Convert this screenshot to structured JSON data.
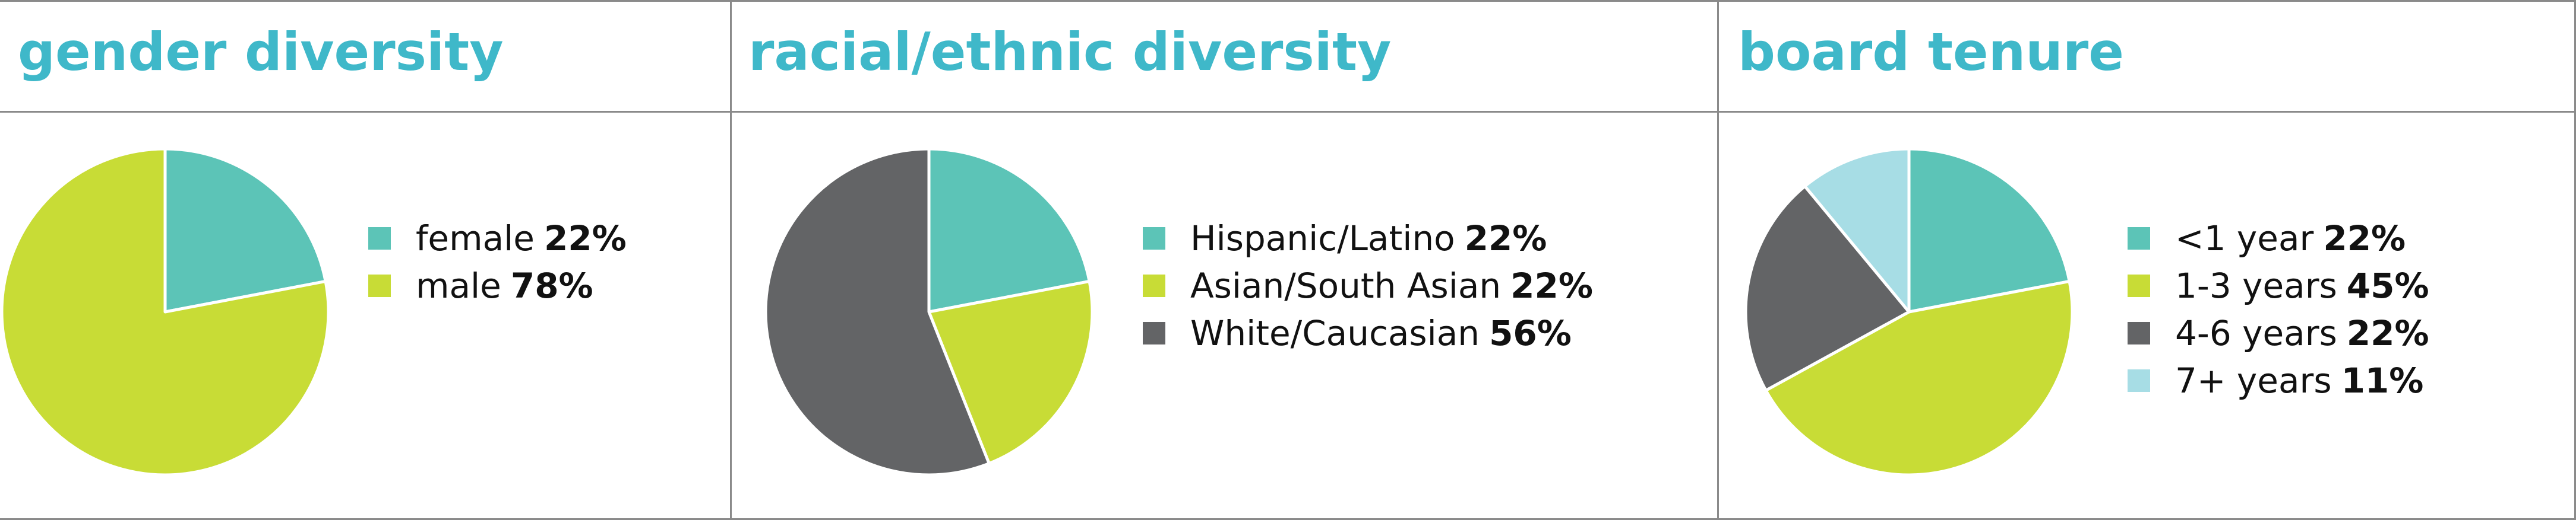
{
  "colors": {
    "title": "#3fb8c9",
    "teal": "#5cc4b7",
    "lime": "#c8dc36",
    "gray": "#636466",
    "lightblue": "#a7dde5"
  },
  "chart_data": [
    {
      "type": "pie",
      "title": "gender diversity",
      "slices": [
        {
          "label": "female",
          "value": 22,
          "display": "22%",
          "color": "#5cc4b7"
        },
        {
          "label": "male",
          "value": 78,
          "display": "78%",
          "color": "#c8dc36"
        }
      ],
      "legend_position": "right"
    },
    {
      "type": "pie",
      "title": "racial/ethnic diversity",
      "slices": [
        {
          "label": "Hispanic/Latino",
          "value": 22,
          "display": "22%",
          "color": "#5cc4b7"
        },
        {
          "label": "Asian/South Asian",
          "value": 22,
          "display": "22%",
          "color": "#c8dc36"
        },
        {
          "label": "White/Caucasian",
          "value": 56,
          "display": "56%",
          "color": "#636466"
        }
      ],
      "legend_position": "right"
    },
    {
      "type": "pie",
      "title": "board tenure",
      "slices": [
        {
          "label": "<1 year",
          "value": 22,
          "display": "22%",
          "color": "#5cc4b7"
        },
        {
          "label": "1-3 years",
          "value": 45,
          "display": "45%",
          "color": "#c8dc36"
        },
        {
          "label": "4-6 years",
          "value": 22,
          "display": "22%",
          "color": "#636466"
        },
        {
          "label": "7+ years",
          "value": 11,
          "display": "11%",
          "color": "#a7dde5"
        }
      ],
      "legend_position": "right"
    }
  ]
}
